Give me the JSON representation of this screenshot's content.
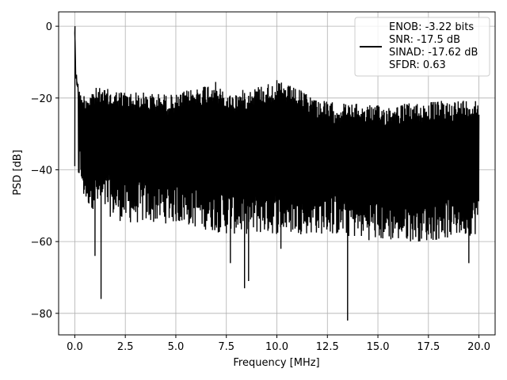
{
  "chart_data": {
    "type": "line",
    "xlabel": "Frequency [MHz]",
    "ylabel": "PSD [dB]",
    "xlim": [
      -0.8,
      20.8
    ],
    "ylim": [
      -86,
      4
    ],
    "xticks": [
      0,
      2.5,
      5,
      7.5,
      10,
      12.5,
      15,
      17.5,
      20
    ],
    "xtick_labels": [
      "0.0",
      "2.5",
      "5.0",
      "7.5",
      "10.0",
      "12.5",
      "15.0",
      "17.5",
      "20.0"
    ],
    "yticks": [
      0,
      -20,
      -40,
      -60,
      -80
    ],
    "ytick_labels": [
      "0",
      "−20",
      "−40",
      "−60",
      "−80"
    ],
    "grid": true,
    "legend_position": "top-right",
    "legend": [
      "ENOB: -3.22 bits",
      "SNR: -17.5 dB",
      "SINAD: -17.62 dB",
      "SFDR: 0.63"
    ],
    "series": [
      {
        "color": "#000000",
        "style": "noise floor spectrum",
        "x_range": [
          0,
          20
        ],
        "upper_envelope_approx": [
          [
            0,
            0
          ],
          [
            0.05,
            -12
          ],
          [
            0.3,
            -19
          ],
          [
            1,
            -17
          ],
          [
            2.5,
            -18
          ],
          [
            5,
            -19
          ],
          [
            6.9,
            -15
          ],
          [
            7.5,
            -19
          ],
          [
            10,
            -15
          ],
          [
            12.5,
            -21
          ],
          [
            15,
            -22
          ],
          [
            17.5,
            -21
          ],
          [
            20,
            -20
          ]
        ],
        "lower_envelope_approx": [
          [
            0,
            -39
          ],
          [
            0.5,
            -50
          ],
          [
            2.5,
            -55
          ],
          [
            5,
            -55
          ],
          [
            7.5,
            -58
          ],
          [
            10,
            -58
          ],
          [
            12.5,
            -58
          ],
          [
            15,
            -60
          ],
          [
            17.5,
            -60
          ],
          [
            20,
            -58
          ]
        ],
        "deep_notches": [
          [
            1.0,
            -64
          ],
          [
            1.3,
            -76
          ],
          [
            7.7,
            -66
          ],
          [
            8.4,
            -73
          ],
          [
            8.6,
            -71
          ],
          [
            10.2,
            -62
          ],
          [
            13.5,
            -82
          ],
          [
            19.5,
            -66
          ]
        ]
      }
    ]
  }
}
